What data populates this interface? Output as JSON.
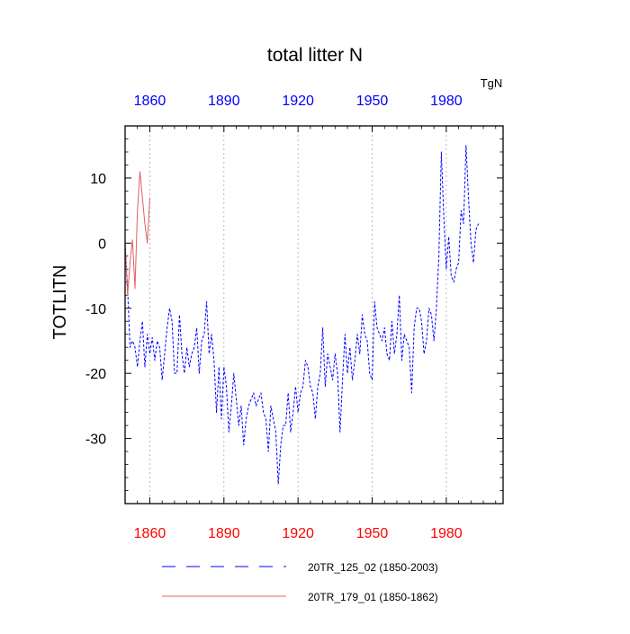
{
  "chart_data": {
    "type": "line",
    "title": "total litter N",
    "units": "TgN",
    "ylabel": "TOTLITN",
    "xlabel": "",
    "xlim": [
      1850,
      2003
    ],
    "ylim": [
      -40,
      18
    ],
    "x_ticks": [
      1860,
      1890,
      1920,
      1950,
      1980
    ],
    "y_ticks": [
      10,
      0,
      -10,
      -20,
      -30
    ],
    "y_tick_labels": [
      "10",
      "0",
      "-10",
      "-20",
      "-30"
    ],
    "grid": "vertical dotted at x ticks",
    "top_tick_color": "#0000ff",
    "bottom_tick_color": "#ff0000",
    "series": [
      {
        "name": "20TR_125_02 (1850-2003)",
        "legend": "20TR_125_02 (1850-2003)",
        "color": "#0000ff",
        "style": "dashed",
        "x_start": 1850,
        "values": [
          0,
          -7,
          -16,
          -15,
          -16,
          -19,
          -15,
          -12,
          -19,
          -14,
          -17,
          -14.5,
          -18,
          -15,
          -16,
          -21,
          -17,
          -13,
          -10,
          -12,
          -20,
          -20,
          -11,
          -17,
          -20,
          -16,
          -19,
          -17,
          -16,
          -13,
          -20,
          -15,
          -14,
          -9,
          -17,
          -14,
          -18,
          -26,
          -19,
          -27,
          -19,
          -22,
          -29,
          -25,
          -20,
          -24,
          -28,
          -25,
          -31,
          -27,
          -25,
          -24,
          -23,
          -25,
          -24,
          -23,
          -26,
          -27,
          -32,
          -25,
          -27,
          -29,
          -37,
          -31,
          -28,
          -28,
          -23,
          -29,
          -26,
          -22,
          -26,
          -23,
          -22,
          -18,
          -19,
          -22,
          -23,
          -27,
          -22,
          -20,
          -13,
          -22,
          -17,
          -19,
          -21,
          -17,
          -20,
          -29,
          -21,
          -14,
          -20,
          -16,
          -21,
          -18,
          -14,
          -17,
          -11,
          -14,
          -15,
          -20,
          -21,
          -9,
          -13,
          -14,
          -15,
          -13,
          -17,
          -18,
          -12,
          -17,
          -14,
          -8,
          -18,
          -14,
          -15,
          -16,
          -23,
          -13,
          -10,
          -10,
          -12,
          -17,
          -15,
          -10,
          -11,
          -15,
          -10,
          -2,
          14,
          4,
          -4,
          1,
          -5,
          -6,
          -4,
          -3,
          5,
          3,
          15,
          7,
          0,
          -3,
          2,
          3
        ]
      },
      {
        "name": "20TR_179_01 (1850-1862)",
        "legend": "20TR_179_01 (1850-1862)",
        "color": "#e06060",
        "style": "solid",
        "x_start": 1850,
        "values": [
          0,
          -8,
          -3,
          0.5,
          -7,
          5,
          11,
          7,
          3,
          0,
          7
        ]
      }
    ]
  }
}
